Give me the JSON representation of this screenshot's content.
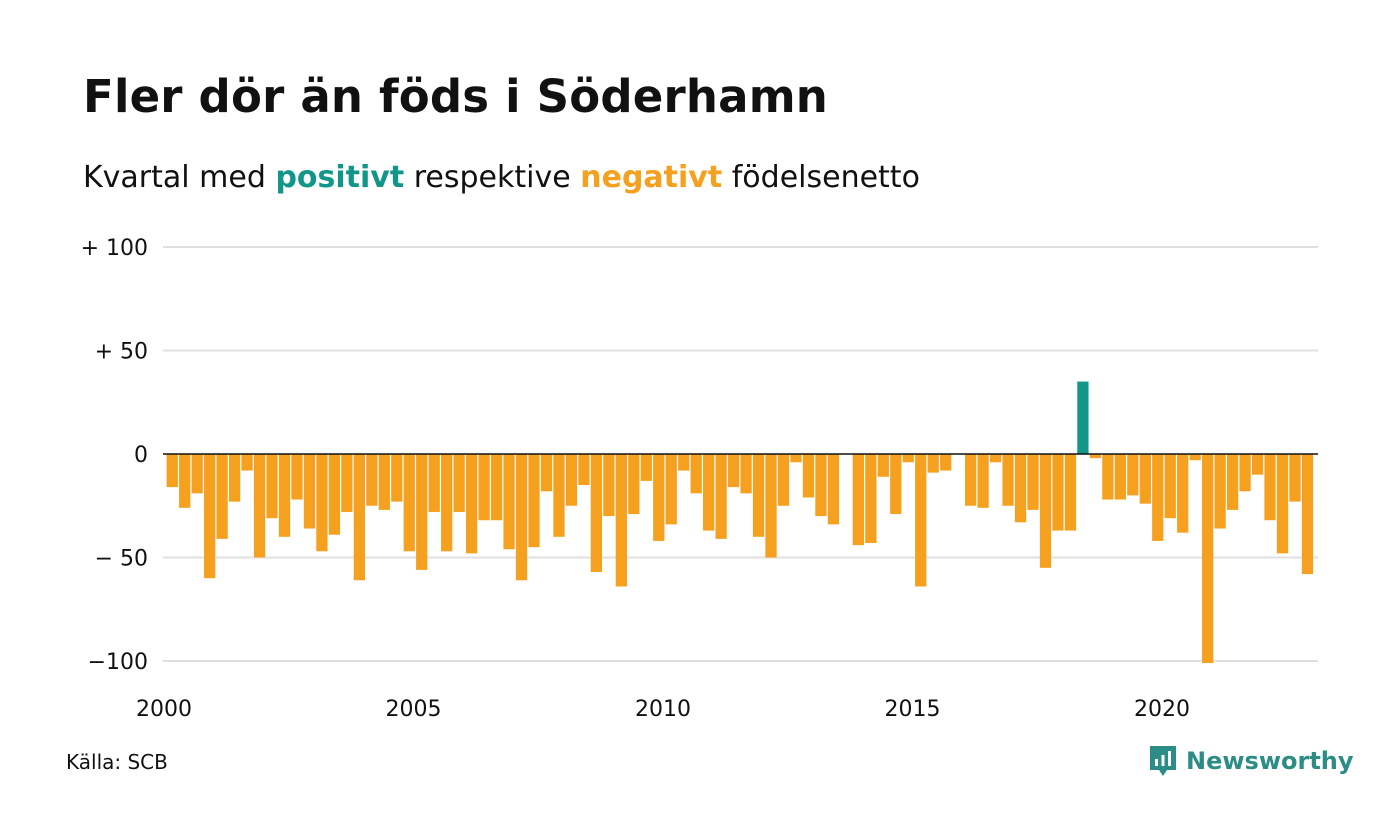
{
  "header": {
    "title": "Fler dör än föds i Söderhamn",
    "subtitle_prefix": "Kvartal med",
    "subtitle_positive": "positivt",
    "subtitle_middle": "respektive",
    "subtitle_negative": "negativt",
    "subtitle_suffix": "födelsenetto"
  },
  "footer": {
    "source": "Källa: SCB",
    "brand": "Newsworthy"
  },
  "colors": {
    "positive": "#13968a",
    "negative": "#f5a11f",
    "grid": "#e0e0e0",
    "brand": "#2b8d85"
  },
  "chart_data": {
    "type": "bar",
    "title": "Fler dör än föds i Söderhamn",
    "subtitle": "Kvartal med positivt respektive negativt födelsenetto",
    "x_start": 2000,
    "x_end": 2023,
    "periods_per_year": 4,
    "xticks": [
      2000,
      2005,
      2010,
      2015,
      2020
    ],
    "xtick_labels": [
      "2000",
      "2005",
      "2010",
      "2015",
      "2020"
    ],
    "ylim": [
      -100,
      100
    ],
    "yticks": [
      100,
      50,
      0,
      -50,
      -100
    ],
    "ytick_labels": [
      "+ 100",
      "+  50",
      "0",
      "− 50",
      "−100"
    ],
    "grid": true,
    "values": [
      -16,
      -26,
      -19,
      -60,
      -41,
      -23,
      -8,
      -50,
      -31,
      -40,
      -22,
      -36,
      -47,
      -39,
      -28,
      -61,
      -25,
      -27,
      -23,
      -47,
      -56,
      -28,
      -47,
      -28,
      -48,
      -32,
      -32,
      -46,
      -61,
      -45,
      -18,
      -40,
      -25,
      -15,
      -57,
      -30,
      -64,
      -29,
      -13,
      -42,
      -34,
      -8,
      -19,
      -37,
      -41,
      -16,
      -19,
      -40,
      -50,
      -25,
      -4,
      -21,
      -30,
      -34,
      0,
      -44,
      -43,
      -11,
      -29,
      -4,
      -64,
      -9,
      -8,
      0,
      -25,
      -26,
      -4,
      -25,
      -33,
      -27,
      -55,
      -37,
      -37,
      35,
      -2,
      -22,
      -22,
      -20,
      -24,
      -42,
      -31,
      -38,
      -3,
      -101,
      -36,
      -27,
      -18,
      -10,
      -32,
      -48,
      -23,
      -58
    ]
  }
}
